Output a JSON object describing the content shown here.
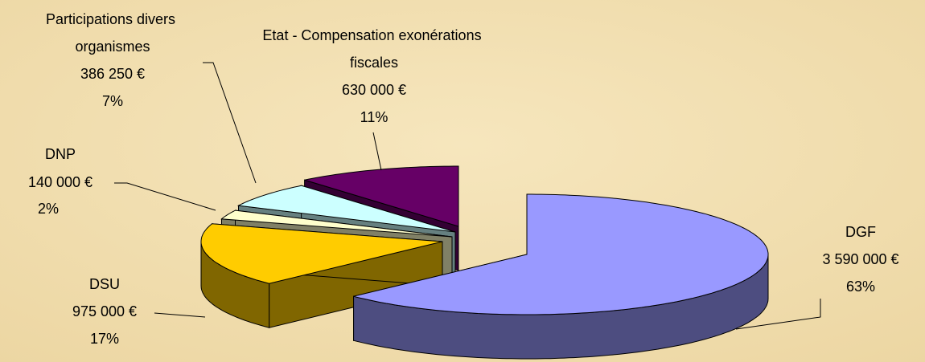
{
  "chart_data": {
    "type": "pie3d",
    "categories": [
      "DGF",
      "DSU",
      "DNP",
      "Participations divers organismes",
      "Etat - Compensation exonérations fiscales"
    ],
    "values": [
      3590000,
      975000,
      140000,
      386250,
      630000
    ],
    "value_labels": [
      "3 590 000 €",
      "975 000 €",
      "140 000 €",
      "386 250 €",
      "630 000 €"
    ],
    "percent_labels": [
      "63%",
      "17%",
      "2%",
      "7%",
      "11%"
    ],
    "colors": [
      "#9999ff",
      "#ffcc00",
      "#ffffcc",
      "#ccffff",
      "#660066"
    ]
  }
}
